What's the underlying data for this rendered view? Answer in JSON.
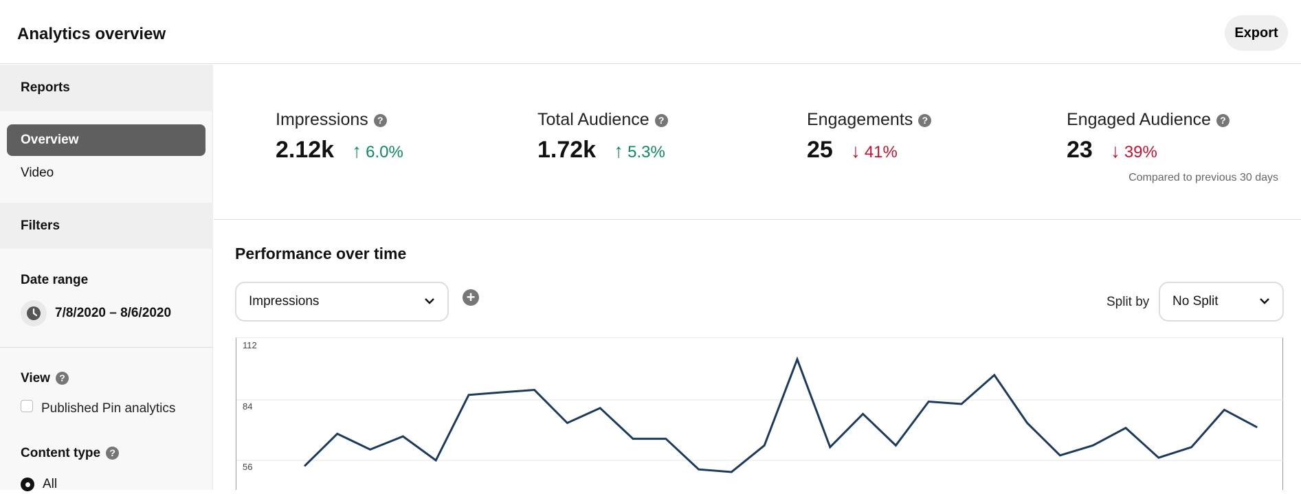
{
  "header": {
    "title": "Analytics overview",
    "export_label": "Export"
  },
  "sidebar": {
    "reports_heading": "Reports",
    "items": [
      {
        "label": "Overview",
        "active": true
      },
      {
        "label": "Video",
        "active": false
      }
    ],
    "filters_heading": "Filters",
    "date_range_label": "Date range",
    "date_range_value": "7/8/2020 – 8/6/2020",
    "view_label": "View",
    "view_checkbox_label": "Published Pin analytics",
    "view_checkbox_checked": false,
    "content_type_label": "Content type",
    "content_type_options": [
      {
        "label": "All",
        "selected": true
      }
    ]
  },
  "stats": [
    {
      "name": "Impressions",
      "value": "2.12k",
      "change": "6.0%",
      "direction": "up"
    },
    {
      "name": "Total Audience",
      "value": "1.72k",
      "change": "5.3%",
      "direction": "up"
    },
    {
      "name": "Engagements",
      "value": "25",
      "change": "41%",
      "direction": "down"
    },
    {
      "name": "Engaged Audience",
      "value": "23",
      "change": "39%",
      "direction": "down"
    }
  ],
  "compare_note": "Compared to previous 30 days",
  "colors": {
    "up": "#0e8a5f",
    "down": "#c8102e",
    "line": "#1b3a5c"
  },
  "performance": {
    "title": "Performance over time",
    "metric_select": "Impressions",
    "split_by_label": "Split by",
    "split_select": "No Split"
  },
  "chart_data": {
    "type": "line",
    "yticks": [
      "112",
      "84",
      "56"
    ],
    "ylim_top": 112,
    "series": [
      {
        "values": [
          53.3,
          68.3,
          61,
          67.1,
          56,
          86.3,
          87.5,
          88.6,
          73.3,
          80.2,
          66,
          66,
          51.8,
          50.6,
          62.9,
          102.8,
          62.1,
          77.5,
          62.9,
          83.2,
          82.1,
          95.5,
          73.3,
          58.3,
          62.9,
          71,
          57.2,
          62.1,
          79.4,
          71.3
        ]
      }
    ],
    "grid": true
  }
}
